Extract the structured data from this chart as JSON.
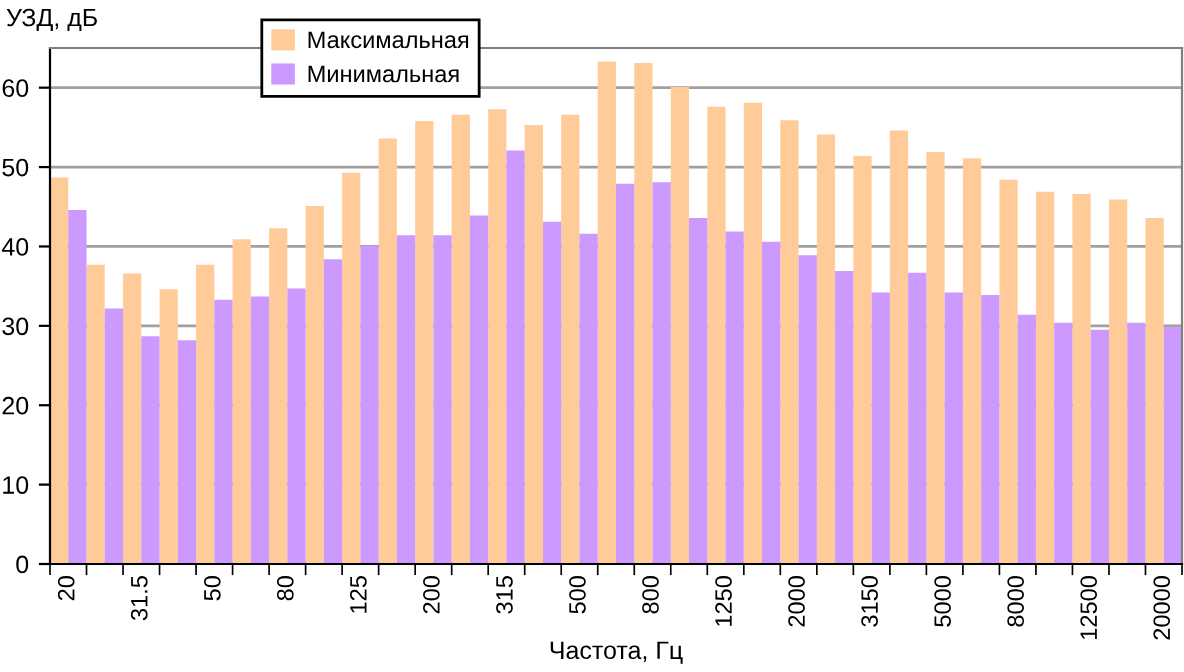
{
  "chart_data": {
    "type": "bar",
    "ylabel": "УЗД, дБ",
    "xlabel": "Частота, Гц",
    "categories": [
      "20",
      null,
      "31.5",
      null,
      "50",
      null,
      "80",
      null,
      "125",
      null,
      "200",
      null,
      "315",
      null,
      "500",
      null,
      "800",
      null,
      "1250",
      null,
      "2000",
      null,
      "3150",
      null,
      "5000",
      null,
      "8000",
      null,
      "12500",
      null,
      "20000"
    ],
    "series": [
      {
        "name": "Максимальная",
        "color": "#ffcc99",
        "values": [
          48.7,
          37.7,
          36.6,
          34.6,
          37.7,
          40.9,
          42.3,
          45.1,
          49.3,
          53.6,
          55.8,
          56.6,
          57.3,
          55.3,
          56.6,
          63.3,
          63.1,
          60.1,
          57.6,
          58.1,
          55.9,
          54.1,
          51.4,
          54.6,
          51.9,
          51.1,
          48.4,
          46.9,
          46.6,
          45.9,
          43.6
        ]
      },
      {
        "name": "Минимальная",
        "color": "#cc99ff",
        "values": [
          44.6,
          32.2,
          28.7,
          28.2,
          33.3,
          33.7,
          34.7,
          38.4,
          40.1,
          41.4,
          41.4,
          43.9,
          52.1,
          43.1,
          41.6,
          47.9,
          48.1,
          43.6,
          41.9,
          40.6,
          38.9,
          36.9,
          34.2,
          36.7,
          34.2,
          33.9,
          31.4,
          30.4,
          29.5,
          30.4,
          29.9
        ]
      }
    ],
    "ylim": [
      0,
      65
    ],
    "yticks": [
      0,
      10,
      20,
      30,
      40,
      50,
      60
    ],
    "grid": "y",
    "legend": "top left"
  }
}
